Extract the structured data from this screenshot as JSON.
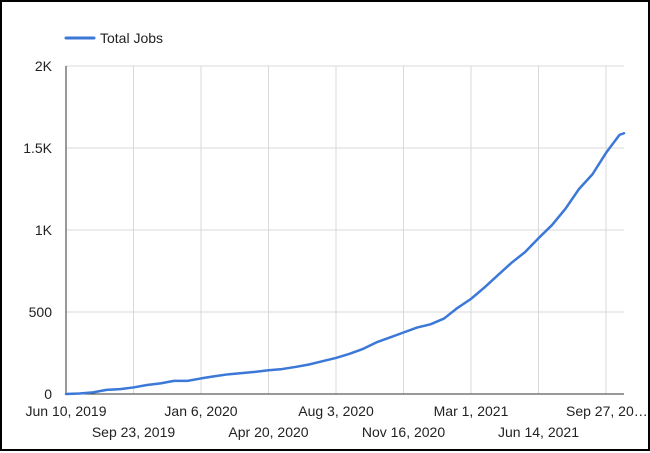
{
  "chart_data": {
    "type": "line",
    "title": "",
    "xlabel": "",
    "ylabel": "",
    "legend": {
      "position": "top-left"
    },
    "grid": true,
    "ylim": [
      0,
      2000
    ],
    "y_ticks": [
      0,
      500,
      1000,
      1500,
      2000
    ],
    "y_tick_labels": [
      "0",
      "500",
      "1K",
      "1.5K",
      "2K"
    ],
    "x_ticks": [
      "2019-06-10",
      "2019-09-23",
      "2020-01-06",
      "2020-04-20",
      "2020-08-03",
      "2020-11-16",
      "2021-03-01",
      "2021-06-14",
      "2021-09-27"
    ],
    "x_tick_labels": [
      "Jun 10, 2019",
      "Sep 23, 2019",
      "Jan 6, 2020",
      "Apr 20, 2020",
      "Aug 3, 2020",
      "Nov 16, 2020",
      "Mar 1, 2021",
      "Jun 14, 2021",
      "Sep 27, 20…"
    ],
    "xlim": [
      "2019-06-10",
      "2021-10-25"
    ],
    "colors": {
      "series": "#3b78d8",
      "grid": "#d9d9d9",
      "axis": "#333333"
    },
    "series": [
      {
        "name": "Total Jobs",
        "x": [
          "2019-06-10",
          "2019-07-01",
          "2019-07-22",
          "2019-08-12",
          "2019-09-02",
          "2019-09-23",
          "2019-10-14",
          "2019-11-04",
          "2019-11-25",
          "2019-12-16",
          "2020-01-06",
          "2020-01-27",
          "2020-02-17",
          "2020-03-09",
          "2020-03-30",
          "2020-04-20",
          "2020-05-11",
          "2020-06-01",
          "2020-06-22",
          "2020-07-13",
          "2020-08-03",
          "2020-08-24",
          "2020-09-14",
          "2020-10-05",
          "2020-10-26",
          "2020-11-16",
          "2020-12-07",
          "2020-12-28",
          "2021-01-18",
          "2021-02-08",
          "2021-03-01",
          "2021-03-22",
          "2021-04-12",
          "2021-05-03",
          "2021-05-24",
          "2021-06-14",
          "2021-07-05",
          "2021-07-26",
          "2021-08-16",
          "2021-09-06",
          "2021-09-27",
          "2021-10-18",
          "2021-10-25"
        ],
        "values": [
          0,
          3,
          10,
          25,
          30,
          40,
          55,
          65,
          80,
          80,
          95,
          108,
          120,
          127,
          135,
          145,
          152,
          165,
          180,
          200,
          220,
          245,
          275,
          315,
          345,
          375,
          405,
          425,
          460,
          525,
          580,
          650,
          725,
          800,
          865,
          950,
          1030,
          1130,
          1250,
          1340,
          1470,
          1580,
          1590
        ]
      }
    ]
  }
}
